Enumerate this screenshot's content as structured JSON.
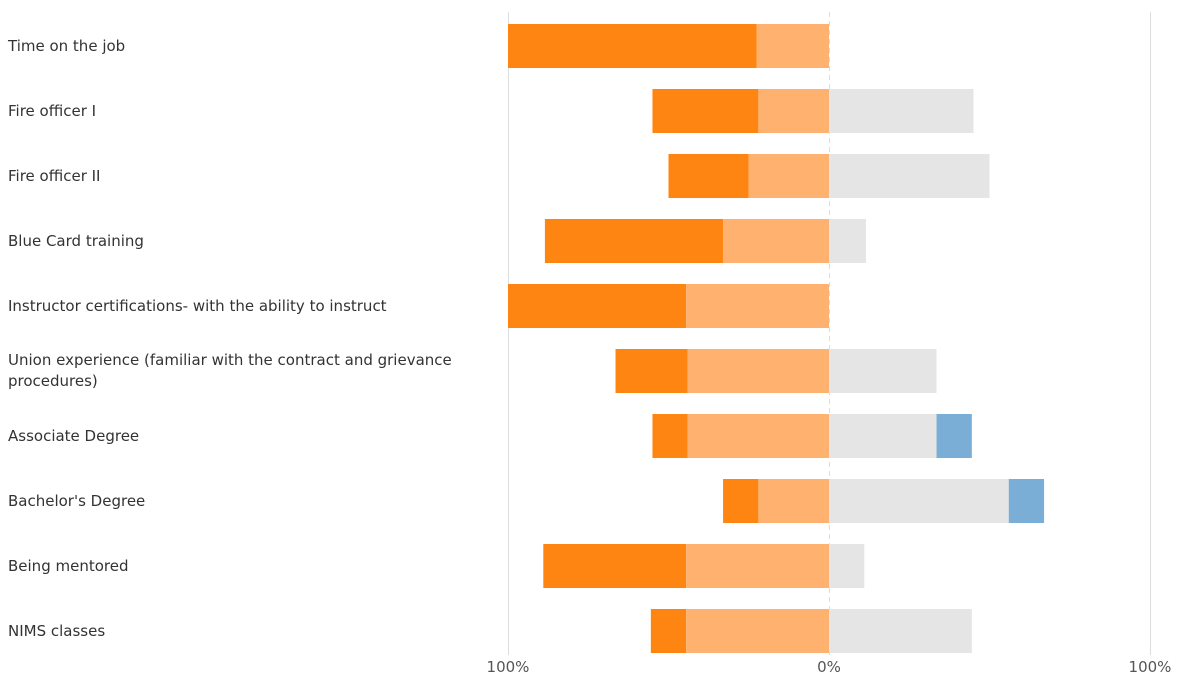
{
  "chart_data": {
    "type": "bar",
    "subtype": "diverging-stacked-horizontal",
    "title": "",
    "xlabel": "",
    "ylabel": "",
    "xlim": [
      -100,
      100
    ],
    "grid": true,
    "legend": "none",
    "categories": [
      "Time on the job",
      "Fire officer I",
      "Fire officer II",
      "Blue Card training",
      "Instructor certifications- with the ability to instruct",
      "Union experience (familiar with the contract and grievance procedures)",
      "Associate Degree",
      "Bachelor's Degree",
      "Being mentored",
      "NIMS classes"
    ],
    "x_tick_labels": [
      "100%",
      "0%",
      "100%"
    ],
    "x_tick_values": [
      -100,
      0,
      100
    ],
    "series": [
      {
        "values": [
          77.5,
          33,
          25,
          55.5,
          55.5,
          22.5,
          11,
          11,
          44.5,
          11
        ]
      },
      {
        "values": [
          22.5,
          22,
          25,
          33,
          44.5,
          44,
          44,
          22,
          44.5,
          44.5
        ]
      },
      {
        "values": [
          0,
          45,
          50,
          11.5,
          0,
          33.5,
          33.5,
          56,
          11,
          44.5
        ]
      },
      {
        "values": [
          0,
          0,
          0,
          0,
          0,
          0,
          11,
          11,
          0,
          0
        ]
      }
    ],
    "series_colors": [
      "#ff8512",
      "#ffb26f",
      "#e5e5e5",
      "#7aaed6"
    ],
    "neutral_series_index": 2,
    "negative_series_count": 2
  }
}
